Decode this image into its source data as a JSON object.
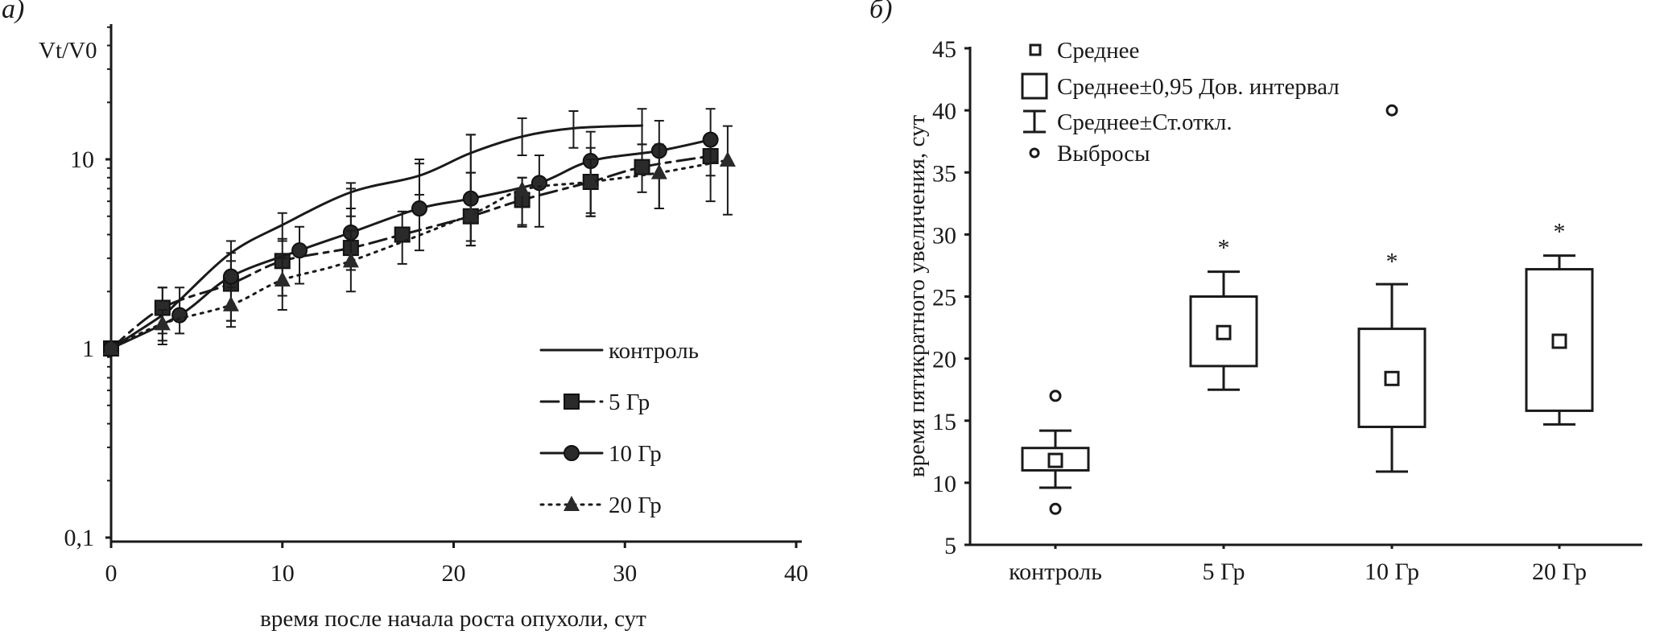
{
  "chart_data": [
    {
      "type": "line",
      "panel_label": "а)",
      "title": "",
      "ylabel": "Vt/V0",
      "xlabel": "время  после начала роста опухоли, сут",
      "yscale": "log",
      "xlim": [
        0,
        40
      ],
      "ylim": [
        0.1,
        50
      ],
      "xticks": [
        "0",
        "10",
        "20",
        "30",
        "40"
      ],
      "yticks": [
        "0,1",
        "1",
        "10"
      ],
      "legend_position": "bottom-right",
      "series": [
        {
          "name": "контроль",
          "style": "solid",
          "marker": "none",
          "x": [
            0,
            3,
            4,
            7,
            10,
            14,
            18,
            21,
            24,
            27,
            31
          ],
          "y": [
            1,
            1.5,
            1.8,
            3.2,
            4.5,
            6.7,
            8.2,
            10.8,
            13.2,
            14.6,
            15.1
          ],
          "err_low": [
            null,
            1.1,
            null,
            2.5,
            3.7,
            5.0,
            6.5,
            8.5,
            10.5,
            11.5,
            12.0
          ],
          "err_high": [
            null,
            2.1,
            null,
            3.7,
            5.2,
            7.5,
            10.0,
            13.5,
            16.5,
            18.0,
            18.5
          ]
        },
        {
          "name": "5 Гр",
          "style": "dashdot",
          "marker": "square",
          "x": [
            0,
            3,
            7,
            10,
            14,
            17,
            21,
            24,
            28,
            31,
            35
          ],
          "y": [
            1,
            1.64,
            2.2,
            2.9,
            3.4,
            4.0,
            5.0,
            6.1,
            7.6,
            9.1,
            10.4
          ],
          "err_low": [
            null,
            1.2,
            1.4,
            1.9,
            2.6,
            2.8,
            3.5,
            4.4,
            5.0,
            6.7,
            8.2
          ],
          "err_high": [
            null,
            2.1,
            2.9,
            3.8,
            5.5,
            5.3,
            8.5,
            8.0,
            11.5,
            12.0,
            13.0
          ]
        },
        {
          "name": "10 Гр",
          "style": "solid",
          "marker": "circle",
          "x": [
            0,
            4,
            7,
            11,
            14,
            18,
            21,
            25,
            28,
            32,
            35
          ],
          "y": [
            1,
            1.5,
            2.4,
            3.3,
            4.1,
            5.5,
            6.2,
            7.5,
            9.8,
            11.1,
            12.7
          ],
          "err_low": [
            null,
            1.2,
            1.4,
            2.2,
            2.6,
            3.3,
            3.7,
            4.4,
            5.2,
            5.5,
            6.0
          ],
          "err_high": [
            null,
            2.1,
            3.2,
            4.4,
            7.0,
            9.5,
            13.5,
            10.5,
            14.0,
            16.0,
            18.5
          ]
        },
        {
          "name": "20 Гр",
          "style": "dotted",
          "marker": "triangle",
          "x": [
            0,
            3,
            7,
            10,
            14,
            21,
            24,
            28,
            32,
            36
          ],
          "y": [
            1,
            1.35,
            1.7,
            2.3,
            2.9,
            5.1,
            6.9,
            7.6,
            8.5,
            9.9
          ],
          "err_low": [
            null,
            1.05,
            1.3,
            1.6,
            2.0,
            3.5,
            4.5,
            5.0,
            5.5,
            5.1
          ],
          "err_high": [
            null,
            1.6,
            2.1,
            3.0,
            4.2,
            8.5,
            8.0,
            10.0,
            12.0,
            15.0
          ]
        }
      ]
    },
    {
      "type": "box",
      "panel_label": "б)",
      "title": "",
      "ylabel": "время пятикратного увеличения, сут",
      "xlabel": "",
      "ylim": [
        5,
        45
      ],
      "yticks": [
        "5",
        "10",
        "15",
        "20",
        "25",
        "30",
        "35",
        "40",
        "45"
      ],
      "categories": [
        "контроль",
        "5 Гр",
        "10 Гр",
        "20 Гр"
      ],
      "legend_position": "top-left",
      "legend": [
        "Среднее",
        "Среднее±0,95 Дов. интервал",
        "Среднее±Ст.откл.",
        "Выбросы"
      ],
      "boxes": [
        {
          "category": "контроль",
          "mean": 11.8,
          "ci": [
            11.0,
            12.8
          ],
          "sd": [
            9.6,
            14.2
          ],
          "outliers": [
            17.0,
            7.9
          ],
          "significance": ""
        },
        {
          "category": "5 Гр",
          "mean": 22.1,
          "ci": [
            19.4,
            25.0
          ],
          "sd": [
            17.5,
            27.0
          ],
          "outliers": [],
          "significance": "*"
        },
        {
          "category": "10 Гр",
          "mean": 18.4,
          "ci": [
            14.5,
            22.4
          ],
          "sd": [
            10.9,
            26.0
          ],
          "outliers": [
            40.0
          ],
          "significance": "*"
        },
        {
          "category": "20 Гр",
          "mean": 21.4,
          "ci": [
            15.8,
            27.2
          ],
          "sd": [
            14.7,
            28.3
          ],
          "outliers": [],
          "significance": "*"
        }
      ]
    }
  ]
}
